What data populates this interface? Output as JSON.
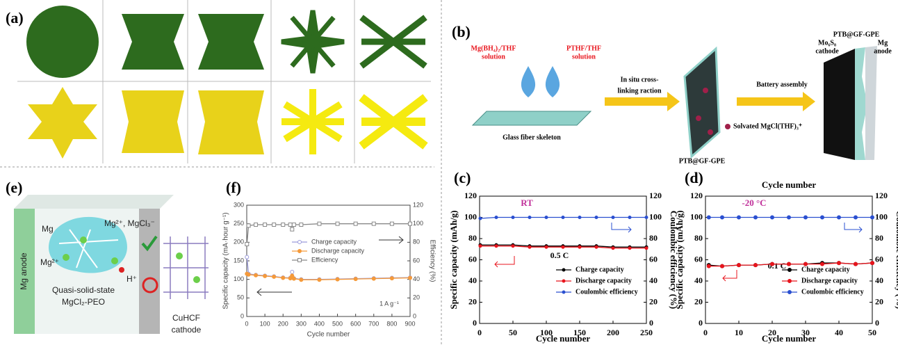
{
  "panel_a": {
    "label": "(a)"
  },
  "panel_b": {
    "label": "(b)",
    "solution_1": [
      "Mg(BH₄)₂/THF",
      "solution"
    ],
    "solution_2": [
      "PTHF/THF",
      "solution"
    ],
    "skeleton": "Glass fiber skeleton",
    "step_1": [
      "In situ cross-",
      "linking raction"
    ],
    "step_2": "Battery assembly",
    "membrane": "PTB@GF-GPE",
    "legend": "Solvated MgCl(THF)₃⁺",
    "cathode": [
      "Mo₆S₈",
      "cathode"
    ],
    "electrolyte": "PTB@GF-GPE",
    "anode": [
      "Mg",
      "anode"
    ]
  },
  "panel_e": {
    "label": "(e)",
    "anode": "Mg anode",
    "mg": "Mg",
    "mg_ion": "Mg²⁺",
    "species": "Mg²⁺, MgCl₃⁻",
    "proton": "H⁺",
    "electrolyte": [
      "Quasi-solid-state",
      "MgCl₂-PEO"
    ],
    "cathode": [
      "CuHCF",
      "cathode"
    ]
  },
  "chart_data": [
    {
      "type": "line",
      "label": "(f)",
      "xlabel": "Cycle number",
      "ylabel": "Specific capacity (mA·hour g⁻¹)",
      "y2label": "Efficiency (%)",
      "xlim": [
        0,
        900
      ],
      "xticks": [
        0,
        100,
        200,
        300,
        400,
        500,
        600,
        700,
        800,
        900
      ],
      "ylim": [
        0,
        300
      ],
      "yticks": [
        0,
        50,
        100,
        150,
        200,
        250,
        300
      ],
      "y2lim": [
        0,
        120
      ],
      "y2ticks": [
        0,
        20,
        40,
        60,
        80,
        100,
        120
      ],
      "rate": "1 A g⁻¹",
      "legend": "center",
      "x": [
        1,
        10,
        50,
        100,
        150,
        200,
        240,
        250,
        260,
        300,
        400,
        500,
        600,
        700,
        800,
        900
      ],
      "series": [
        {
          "name": "Charge capacity",
          "color": "#9b9bdc",
          "marker": "circle-open",
          "values": [
            160,
            115,
            112,
            110,
            108,
            105,
            104,
            120,
            103,
            100,
            100,
            101,
            102,
            103,
            104,
            105
          ]
        },
        {
          "name": "Discharge capacity",
          "color": "#f59a3a",
          "marker": "circle",
          "values": [
            115,
            113,
            111,
            109,
            107,
            104,
            103,
            110,
            102,
            99,
            99,
            100,
            101,
            102,
            103,
            104
          ]
        },
        {
          "name": "Efficiency",
          "color": "#888888",
          "marker": "square-open",
          "axis": "y2",
          "values": [
            78,
            98,
            99,
            99,
            99,
            99,
            99,
            94,
            99,
            99,
            100,
            100,
            100,
            100,
            100,
            100
          ]
        }
      ]
    },
    {
      "type": "line",
      "label": "(c)",
      "xlabel": "Cycle number",
      "ylabel": "Specific capacity (mAh/g)",
      "y2label": "Coulombic efficiency (%)",
      "xlim": [
        0,
        250
      ],
      "xticks": [
        0,
        50,
        100,
        150,
        200,
        250
      ],
      "ylim": [
        0,
        120
      ],
      "yticks": [
        0,
        20,
        40,
        60,
        80,
        100,
        120
      ],
      "y2lim": [
        0,
        120
      ],
      "y2ticks": [
        0,
        20,
        40,
        60,
        80,
        100,
        120
      ],
      "condition": "RT",
      "rate": "0.5 C",
      "legend": "lower right",
      "x": [
        1,
        25,
        50,
        75,
        100,
        125,
        150,
        175,
        200,
        225,
        250
      ],
      "series": [
        {
          "name": "Charge capacity",
          "color": "#000000",
          "marker": "circle",
          "values": [
            74,
            74,
            74,
            73,
            73,
            73,
            73,
            73,
            72,
            72,
            72
          ]
        },
        {
          "name": "Discharge capacity",
          "color": "#e8141c",
          "marker": "circle",
          "values": [
            73,
            73,
            73,
            72,
            72,
            72,
            72,
            72,
            71,
            71,
            71
          ]
        },
        {
          "name": "Coulombic efficiency",
          "color": "#2a4fd0",
          "marker": "circle",
          "axis": "y2",
          "values": [
            99,
            100,
            100,
            100,
            100,
            100,
            100,
            100,
            100,
            100,
            100
          ]
        }
      ]
    },
    {
      "type": "line",
      "label": "(d)",
      "top_label": "Cycle number",
      "xlabel": "Cycle number",
      "ylabel": "Specific capacity (mAh/g)",
      "y2label": "Coulombic efficiency (%)",
      "xlim": [
        0,
        50
      ],
      "xticks": [
        0,
        10,
        20,
        30,
        40,
        50
      ],
      "ylim": [
        0,
        120
      ],
      "yticks": [
        0,
        20,
        40,
        60,
        80,
        100,
        120
      ],
      "y2lim": [
        0,
        120
      ],
      "y2ticks": [
        0,
        20,
        40,
        60,
        80,
        100,
        120
      ],
      "condition": "-20 °C",
      "rate": "0.1 C",
      "legend": "lower right",
      "x": [
        1,
        5,
        10,
        15,
        20,
        25,
        30,
        35,
        40,
        45,
        50
      ],
      "series": [
        {
          "name": "Charge capacity",
          "color": "#000000",
          "marker": "circle",
          "values": [
            55,
            54,
            55,
            55,
            56,
            56,
            56,
            57,
            57,
            56,
            57
          ]
        },
        {
          "name": "Discharge capacity",
          "color": "#e8141c",
          "marker": "circle",
          "values": [
            54,
            54,
            55,
            55,
            56,
            56,
            56,
            56,
            57,
            56,
            57
          ]
        },
        {
          "name": "Coulombic efficiency",
          "color": "#2a4fd0",
          "marker": "circle",
          "axis": "y2",
          "values": [
            100,
            100,
            100,
            100,
            100,
            100,
            100,
            100,
            100,
            100,
            100
          ]
        }
      ]
    }
  ]
}
